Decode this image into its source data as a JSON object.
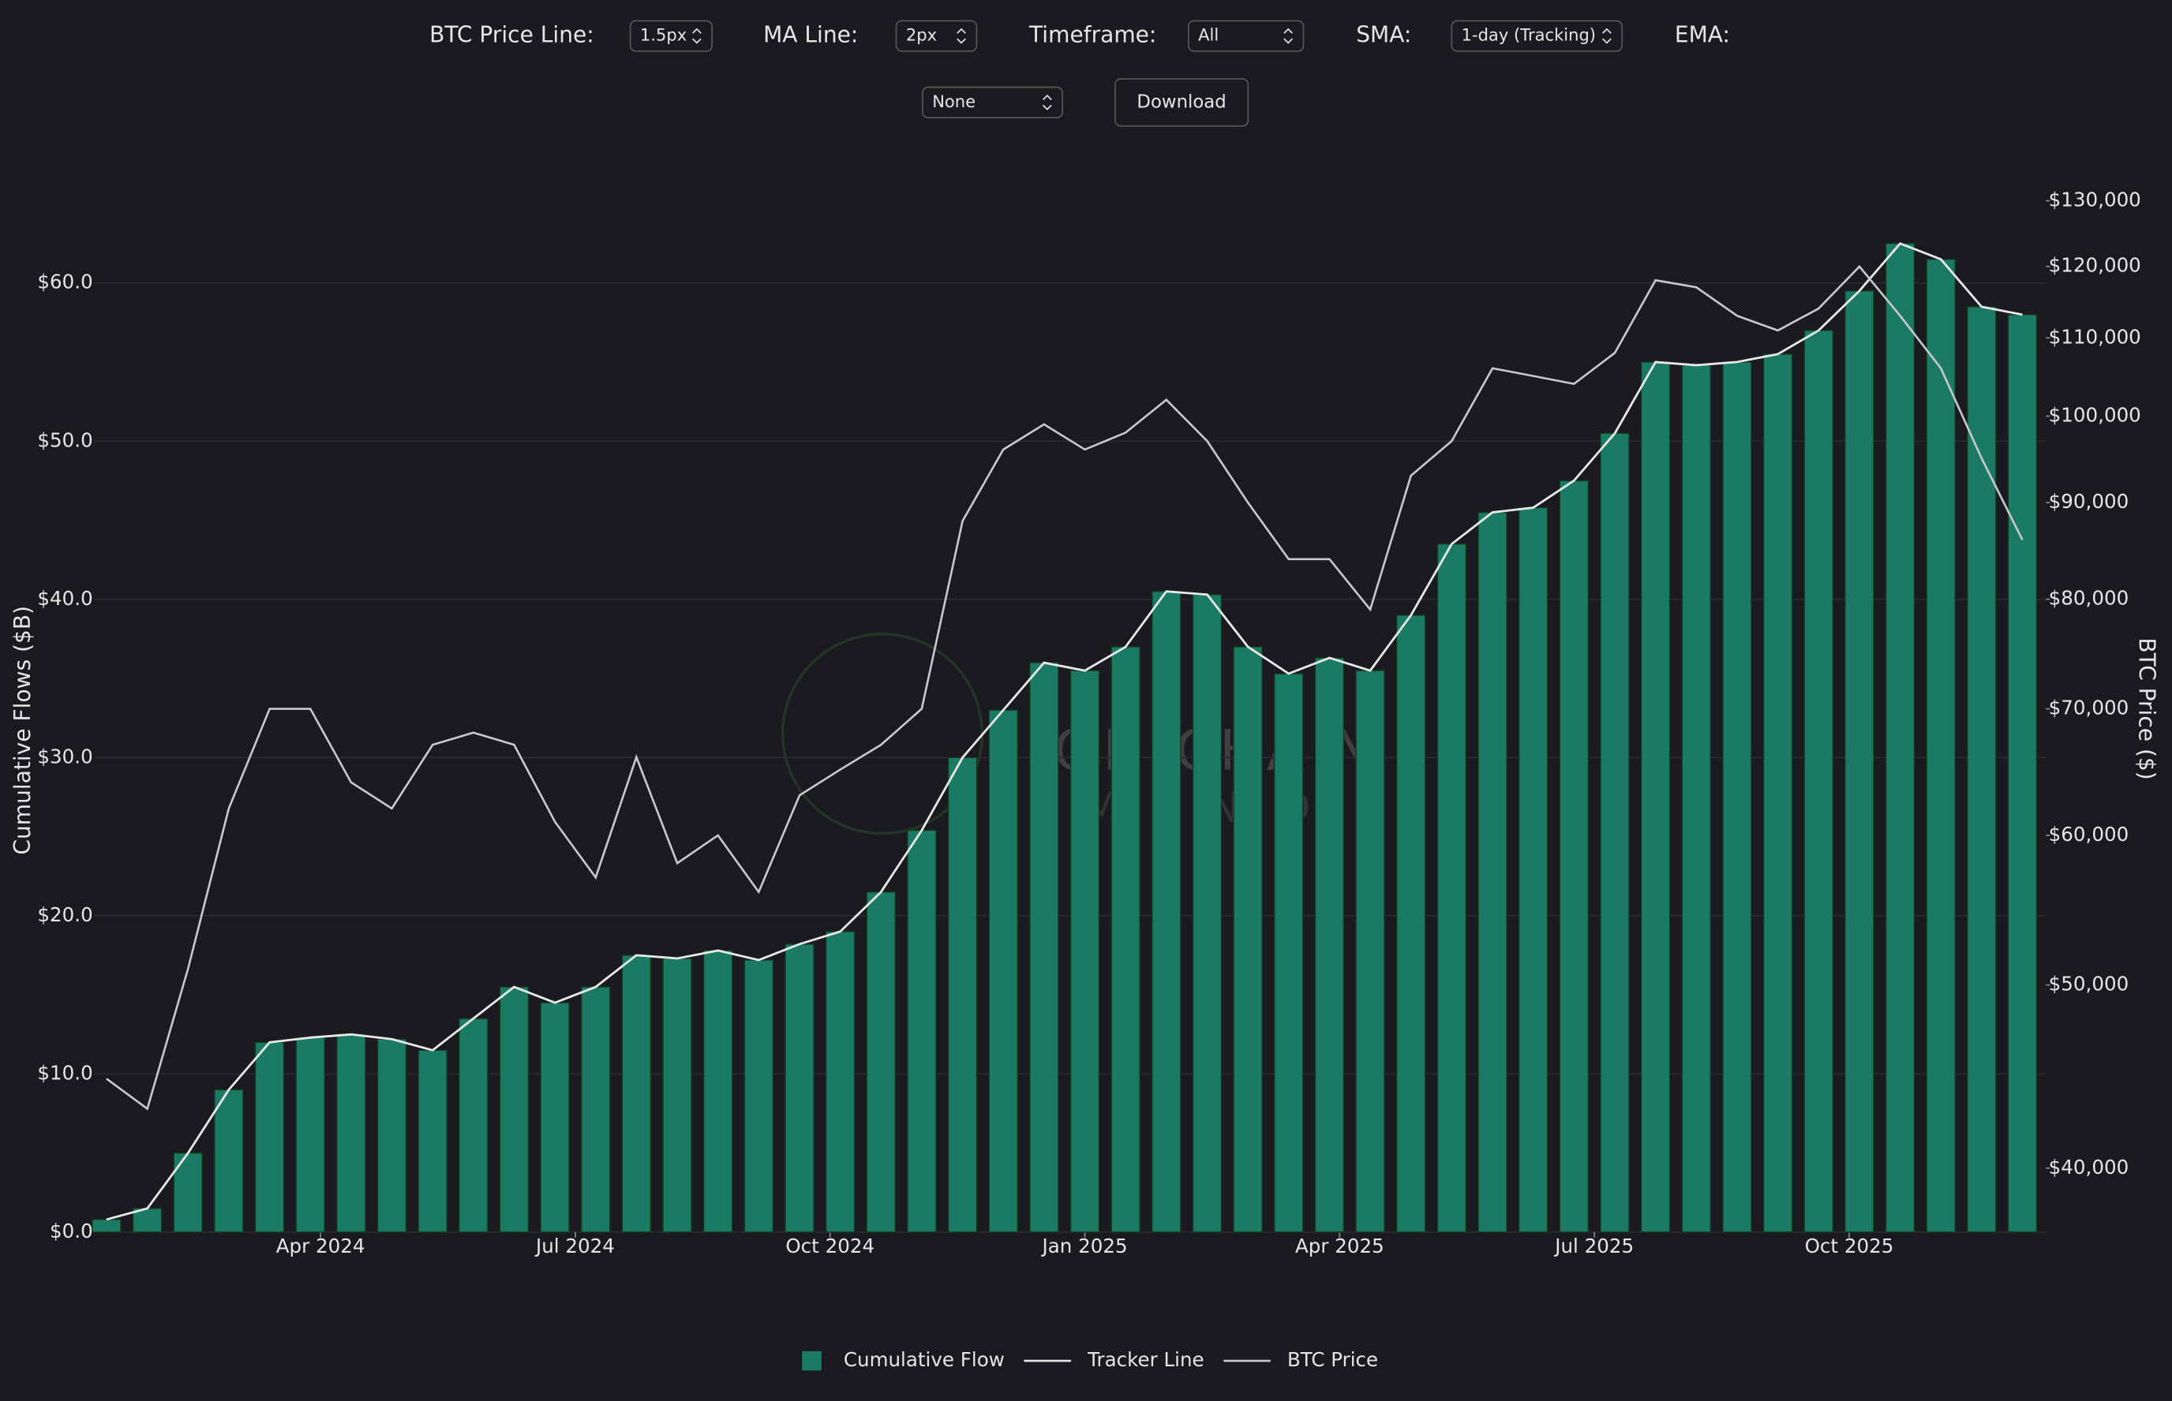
{
  "controls": [
    {
      "label": "BTC Price Line:",
      "value": "1.5px"
    },
    {
      "label": "MA Line:",
      "value": "2px"
    },
    {
      "label": "Timeframe:",
      "value": "All"
    },
    {
      "label": "SMA:",
      "value": "1-day (Tracking)"
    },
    {
      "label": "EMA:",
      "value": "None"
    }
  ],
  "download": "Download",
  "watermark": [
    "ON-CHAIN",
    "MIND"
  ],
  "chart_data": {
    "type": "bar",
    "y_label": "Cumulative Flows ($B)",
    "y2_label": "BTC Price ($)",
    "x": [
      2024.04,
      2024.08,
      2024.12,
      2024.16,
      2024.2,
      2024.24,
      2024.28,
      2024.32,
      2024.36,
      2024.4,
      2024.44,
      2024.48,
      2024.52,
      2024.56,
      2024.6,
      2024.64,
      2024.68,
      2024.72,
      2024.76,
      2024.8,
      2024.84,
      2024.88,
      2024.92,
      2024.96,
      2025.0,
      2025.04,
      2025.08,
      2025.12,
      2025.16,
      2025.2,
      2025.24,
      2025.28,
      2025.32,
      2025.36,
      2025.4,
      2025.44,
      2025.48,
      2025.52,
      2025.56,
      2025.6,
      2025.64,
      2025.68,
      2025.72,
      2025.76,
      2025.8,
      2025.84,
      2025.88,
      2025.92
    ],
    "series": [
      {
        "name": "Cumulative Flow",
        "type": "bar",
        "color": "#1a7a63",
        "values": [
          0.8,
          1.5,
          5,
          9,
          12,
          12.3,
          12.5,
          12.2,
          11.5,
          13.5,
          15.5,
          14.5,
          15.5,
          17.5,
          17.3,
          17.8,
          17.2,
          18.2,
          19,
          21.5,
          25.4,
          30,
          33,
          36,
          35.5,
          37,
          40.5,
          40.3,
          37,
          35.3,
          36.3,
          35.5,
          39,
          43.5,
          45.5,
          45.8,
          47.5,
          50.5,
          55,
          54.8,
          55,
          55.5,
          57,
          59.5,
          62.5,
          61.5,
          58.5,
          58
        ]
      },
      {
        "name": "Tracker Line",
        "type": "line",
        "color": "#e8e8e8",
        "values": [
          0.8,
          1.5,
          5,
          9,
          12,
          12.3,
          12.5,
          12.2,
          11.5,
          13.5,
          15.5,
          14.5,
          15.5,
          17.5,
          17.3,
          17.8,
          17.2,
          18.2,
          19,
          21.5,
          25.4,
          30,
          33,
          36,
          35.5,
          37,
          40.5,
          40.3,
          37,
          35.3,
          36.3,
          35.5,
          39,
          43.5,
          45.5,
          45.8,
          47.5,
          50.5,
          55,
          54.8,
          55,
          55.5,
          57,
          59.5,
          62.5,
          61.5,
          58.5,
          58
        ]
      },
      {
        "name": "BTC Price",
        "type": "line",
        "axis": "y2",
        "color": "#c8c8cc",
        "values": [
          44600,
          43000,
          51000,
          62000,
          70000,
          70000,
          64000,
          62000,
          67000,
          68000,
          67000,
          61000,
          57000,
          66000,
          58000,
          60000,
          56000,
          63000,
          65000,
          67000,
          70000,
          88000,
          96000,
          99000,
          96000,
          98000,
          102000,
          97000,
          90000,
          84000,
          84000,
          79000,
          93000,
          97000,
          106000,
          105000,
          104000,
          108000,
          118000,
          117000,
          113000,
          111000,
          114000,
          120000,
          113000,
          106000,
          95000,
          86000
        ]
      }
    ],
    "xlim": [
      2024.028,
      2025.943
    ],
    "xticks": [
      {
        "value": 2024.25,
        "label": "Apr 2024"
      },
      {
        "value": 2024.5,
        "label": "Jul 2024"
      },
      {
        "value": 2024.75,
        "label": "Oct 2024"
      },
      {
        "value": 2025.0,
        "label": "Jan 2025"
      },
      {
        "value": 2025.25,
        "label": "Apr 2025"
      },
      {
        "value": 2025.5,
        "label": "Jul 2025"
      },
      {
        "value": 2025.75,
        "label": "Oct 2025"
      }
    ],
    "ylim": [
      0,
      65.2
    ],
    "yticks": [
      {
        "value": 0,
        "label": "$0.0"
      },
      {
        "value": 10,
        "label": "$10.0"
      },
      {
        "value": 20,
        "label": "$20.0"
      },
      {
        "value": 30,
        "label": "$30.0"
      },
      {
        "value": 40,
        "label": "$40.0"
      },
      {
        "value": 50,
        "label": "$50.0"
      },
      {
        "value": 60,
        "label": "$60.0"
      }
    ],
    "y2lim": [
      37000,
      130000
    ],
    "y2log": true,
    "y2ticks": [
      {
        "value": 40000,
        "label": "$40,000"
      },
      {
        "value": 50000,
        "label": "$50,000"
      },
      {
        "value": 60000,
        "label": "$60,000"
      },
      {
        "value": 70000,
        "label": "$70,000"
      },
      {
        "value": 80000,
        "label": "$80,000"
      },
      {
        "value": 90000,
        "label": "$90,000"
      },
      {
        "value": 100000,
        "label": "$100,000"
      },
      {
        "value": 110000,
        "label": "$110,000"
      },
      {
        "value": 120000,
        "label": "$120,000"
      },
      {
        "value": 130000,
        "label": "$130,000"
      }
    ],
    "grid": true,
    "legend": "bottom"
  }
}
